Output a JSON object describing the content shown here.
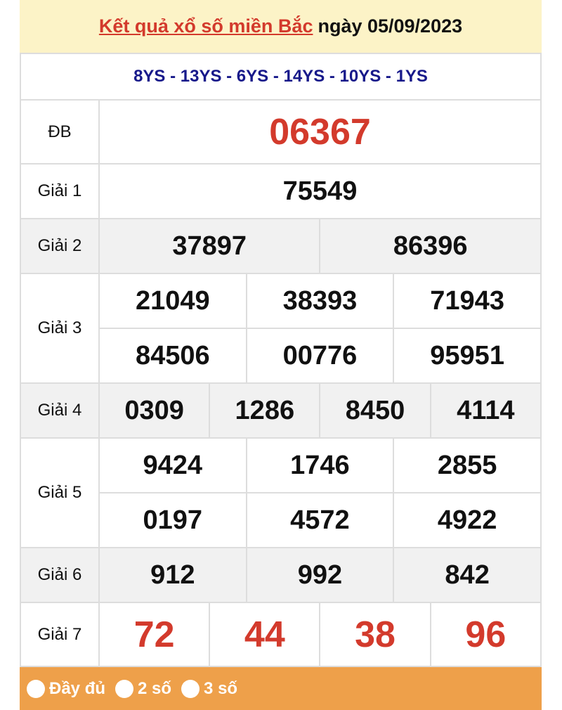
{
  "title": {
    "link": "Kết quả xổ số miền Bắc",
    "date": "ngày 05/09/2023"
  },
  "codes": "8YS - 13YS - 6YS - 14YS - 10YS - 1YS",
  "prizes": {
    "db": {
      "label": "ĐB",
      "nums": [
        "06367"
      ]
    },
    "g1": {
      "label": "Giải 1",
      "nums": [
        "75549"
      ]
    },
    "g2": {
      "label": "Giải 2",
      "nums": [
        "37897",
        "86396"
      ]
    },
    "g3": {
      "label": "Giải 3",
      "nums": [
        "21049",
        "38393",
        "71943",
        "84506",
        "00776",
        "95951"
      ]
    },
    "g4": {
      "label": "Giải 4",
      "nums": [
        "0309",
        "1286",
        "8450",
        "4114"
      ]
    },
    "g5": {
      "label": "Giải 5",
      "nums": [
        "9424",
        "1746",
        "2855",
        "0197",
        "4572",
        "4922"
      ]
    },
    "g6": {
      "label": "Giải 6",
      "nums": [
        "912",
        "992",
        "842"
      ]
    },
    "g7": {
      "label": "Giải 7",
      "nums": [
        "72",
        "44",
        "38",
        "96"
      ]
    }
  },
  "footer": {
    "options": [
      "Đầy đủ",
      "2 số",
      "3 số"
    ]
  },
  "colors": {
    "accent_red": "#d33a2c",
    "codes_blue": "#17198a",
    "header_bg": "#fcf3c7",
    "footer_bg": "#eea04a"
  }
}
